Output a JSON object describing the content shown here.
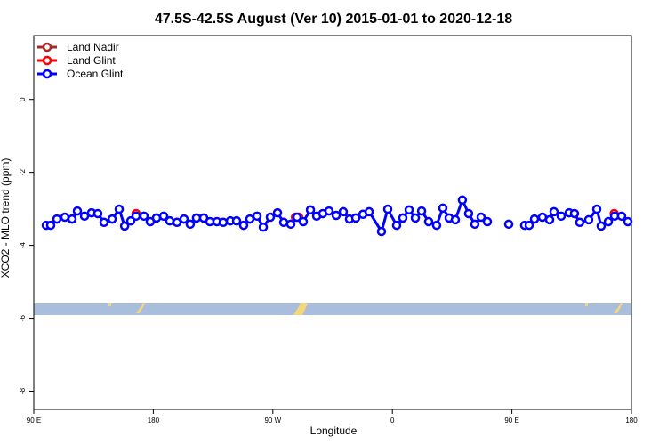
{
  "chart_data": {
    "type": "line",
    "title": "47.5S-42.5S August (Ver 10)   2015-01-01 to 2020-12-18",
    "x_label": "Longitude",
    "y_label": "XCO2 - MLO trend (ppm)",
    "xlim": [
      90,
      540
    ],
    "xticks": [
      {
        "value": 90,
        "label": "90 E"
      },
      {
        "value": 180,
        "label": "180"
      },
      {
        "value": 270,
        "label": "90 W"
      },
      {
        "value": 360,
        "label": "0"
      },
      {
        "value": 450,
        "label": "90 E"
      },
      {
        "value": 540,
        "label": "180"
      }
    ],
    "ylim": [
      -8.5,
      1.75
    ],
    "yticks": [
      0,
      -2,
      -4,
      -6,
      -8
    ],
    "legend": "top-left",
    "series": [
      {
        "name": "Land Nadir",
        "color": "#a52a2a",
        "x": [],
        "values": []
      },
      {
        "name": "Land Glint",
        "color": "#ff0000",
        "x": [
          167,
          287,
          289.5,
          527
        ],
        "values": [
          -3.13,
          -3.23,
          -3.23,
          -3.13
        ]
      },
      {
        "name": "Ocean Glint",
        "color": "#0000ff",
        "x": [
          99.4,
          102.7,
          107.4,
          113.4,
          118.8,
          122.8,
          128.2,
          133.5,
          138.2,
          142.9,
          149,
          154.3,
          158.4,
          163,
          167,
          173,
          177.7,
          182.4,
          187.8,
          192.4,
          197.8,
          203.1,
          207.8,
          212.5,
          217.9,
          222.6,
          227.9,
          232.6,
          238,
          242.7,
          248,
          252.7,
          258.1,
          262.8,
          268.1,
          273.5,
          278.2,
          283.5,
          288.2,
          292.9,
          298.3,
          303,
          307.6,
          312.3,
          317.7,
          323,
          327.7,
          332.4,
          337.8,
          342.5,
          351.8,
          356.5,
          363.2,
          367.9,
          372.6,
          377.3,
          382,
          387.3,
          393.3,
          398,
          402.7,
          407.4,
          412.7,
          417.4,
          422.1,
          426.8,
          431.5,
          null,
          447.6,
          null,
          459.6,
          463,
          467,
          473,
          478.4,
          481.7,
          487.1,
          493.1,
          497.1,
          501.1,
          507.8,
          513.9,
          517.2,
          522.6,
          527.3,
          532.6,
          537.3
        ],
        "values": [
          -3.45,
          -3.45,
          -3.28,
          -3.23,
          -3.28,
          -3.06,
          -3.2,
          -3.11,
          -3.13,
          -3.37,
          -3.28,
          -3.01,
          -3.47,
          -3.33,
          -3.2,
          -3.2,
          -3.35,
          -3.25,
          -3.2,
          -3.33,
          -3.37,
          -3.28,
          -3.42,
          -3.25,
          -3.25,
          -3.35,
          -3.35,
          -3.37,
          -3.33,
          -3.33,
          -3.45,
          -3.28,
          -3.2,
          -3.5,
          -3.23,
          -3.11,
          -3.37,
          -3.42,
          -3.23,
          -3.35,
          -3.03,
          -3.2,
          -3.13,
          -3.06,
          -3.18,
          -3.08,
          -3.28,
          -3.25,
          -3.15,
          -3.08,
          -3.62,
          -3.01,
          -3.45,
          -3.25,
          -3.03,
          -3.25,
          -3.06,
          -3.35,
          -3.45,
          -2.98,
          -3.25,
          -3.3,
          -2.76,
          -3.13,
          -3.42,
          -3.23,
          -3.35,
          null,
          -3.42,
          null,
          -3.45,
          -3.45,
          -3.28,
          -3.23,
          -3.3,
          -3.08,
          -3.2,
          -3.11,
          -3.13,
          -3.37,
          -3.3,
          -3.01,
          -3.47,
          -3.35,
          -3.2,
          -3.2,
          -3.35
        ]
      }
    ]
  }
}
